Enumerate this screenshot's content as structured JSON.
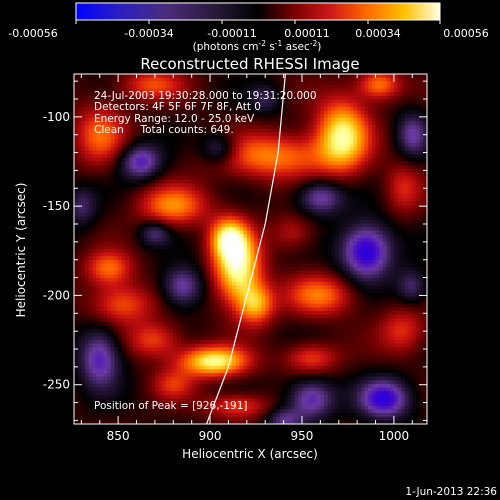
{
  "colorbar": {
    "ticks": [
      "-0.00056",
      "-0.00034",
      "-0.00011",
      "0.00011",
      "0.00034",
      "0.00056"
    ],
    "unit_label_main": "(photons cm",
    "unit_sup1": "-2",
    "unit_mid": " s",
    "unit_sup2": "-1",
    "unit_mid2": " asec",
    "unit_sup3": "-2",
    "unit_close": ")"
  },
  "chart_data": {
    "type": "heatmap",
    "title": "Reconstructed RHESSI Image",
    "xlabel": "Heliocentric X (arcsec)",
    "ylabel": "Heliocentric Y (arcsec)",
    "xlim": [
      826,
      1018
    ],
    "ylim": [
      -272,
      -76
    ],
    "xticks": [
      850,
      900,
      950,
      1000
    ],
    "yticks": [
      -100,
      -150,
      -200,
      -250
    ],
    "zlim": [
      -0.00056,
      0.00056
    ],
    "colormap": [
      "#0000ff",
      "#3b00d0",
      "#6a3aa0",
      "#2a1840",
      "#000000",
      "#6a0000",
      "#c81010",
      "#ff5a00",
      "#ffb400",
      "#ffff80",
      "#ffffff"
    ],
    "blobs": [
      {
        "x": 915,
        "y": -185,
        "sx": 9,
        "sy": 14,
        "a": 1.0
      },
      {
        "x": 910,
        "y": -168,
        "sx": 7,
        "sy": 8,
        "a": 0.75
      },
      {
        "x": 925,
        "y": -205,
        "sx": 7,
        "sy": 8,
        "a": 0.65
      },
      {
        "x": 902,
        "y": -237,
        "sx": 13,
        "sy": 6,
        "a": 0.95
      },
      {
        "x": 972,
        "y": -110,
        "sx": 10,
        "sy": 14,
        "a": 0.9
      },
      {
        "x": 992,
        "y": -82,
        "sx": 8,
        "sy": 6,
        "a": 0.6
      },
      {
        "x": 935,
        "y": -122,
        "sx": 22,
        "sy": 9,
        "a": 0.6
      },
      {
        "x": 880,
        "y": -150,
        "sx": 13,
        "sy": 8,
        "a": 0.6
      },
      {
        "x": 840,
        "y": -110,
        "sx": 10,
        "sy": 12,
        "a": 0.5
      },
      {
        "x": 852,
        "y": -205,
        "sx": 12,
        "sy": 8,
        "a": 0.5
      },
      {
        "x": 845,
        "y": -185,
        "sx": 9,
        "sy": 7,
        "a": 0.55
      },
      {
        "x": 870,
        "y": -225,
        "sx": 10,
        "sy": 7,
        "a": 0.45
      },
      {
        "x": 960,
        "y": -200,
        "sx": 13,
        "sy": 8,
        "a": 0.55
      },
      {
        "x": 1005,
        "y": -220,
        "sx": 9,
        "sy": 9,
        "a": 0.4
      },
      {
        "x": 955,
        "y": -235,
        "sx": 10,
        "sy": 6,
        "a": 0.45
      },
      {
        "x": 915,
        "y": -262,
        "sx": 12,
        "sy": 5,
        "a": 0.45
      },
      {
        "x": 868,
        "y": -82,
        "sx": 12,
        "sy": 6,
        "a": 0.45
      },
      {
        "x": 945,
        "y": -165,
        "sx": 8,
        "sy": 7,
        "a": 0.3
      },
      {
        "x": 1005,
        "y": -140,
        "sx": 7,
        "sy": 10,
        "a": 0.35
      },
      {
        "x": 880,
        "y": -250,
        "sx": 8,
        "sy": 6,
        "a": 0.35
      },
      {
        "x": 862,
        "y": -125,
        "sx": 8,
        "sy": 7,
        "a": -0.6
      },
      {
        "x": 985,
        "y": -175,
        "sx": 10,
        "sy": 11,
        "a": -0.8
      },
      {
        "x": 995,
        "y": -258,
        "sx": 10,
        "sy": 8,
        "a": -0.7
      },
      {
        "x": 955,
        "y": -258,
        "sx": 9,
        "sy": 8,
        "a": -0.6
      },
      {
        "x": 840,
        "y": -235,
        "sx": 8,
        "sy": 12,
        "a": -0.6
      },
      {
        "x": 885,
        "y": -195,
        "sx": 8,
        "sy": 8,
        "a": -0.55
      },
      {
        "x": 960,
        "y": -145,
        "sx": 9,
        "sy": 7,
        "a": -0.55
      },
      {
        "x": 905,
        "y": -118,
        "sx": 7,
        "sy": 6,
        "a": -0.45
      },
      {
        "x": 1010,
        "y": -110,
        "sx": 6,
        "sy": 9,
        "a": -0.45
      },
      {
        "x": 870,
        "y": -165,
        "sx": 6,
        "sy": 5,
        "a": -0.4
      },
      {
        "x": 940,
        "y": -270,
        "sx": 7,
        "sy": 5,
        "a": -0.4
      },
      {
        "x": 1010,
        "y": -195,
        "sx": 6,
        "sy": 7,
        "a": -0.4
      },
      {
        "x": 830,
        "y": -150,
        "sx": 6,
        "sy": 8,
        "a": -0.35
      },
      {
        "x": 930,
        "y": -90,
        "sx": 6,
        "sy": 6,
        "a": -0.3
      }
    ],
    "limb_curve": [
      {
        "x": 897,
        "y": -275
      },
      {
        "x": 910,
        "y": -240
      },
      {
        "x": 920,
        "y": -200
      },
      {
        "x": 930,
        "y": -160
      },
      {
        "x": 937,
        "y": -120
      },
      {
        "x": 941,
        "y": -76
      }
    ],
    "annotations": [
      "24-Jul-2003 19:30:28.000 to 19:31:20.000",
      "Detectors: 4F 5F 6F 7F 8F, Att 0",
      "Energy Range: 12.0 - 25.0 keV",
      "Clean     Total counts: 649.",
      "Position of Peak = [926,-191]"
    ]
  },
  "footer_date": "1-Jun-2013 22:36"
}
